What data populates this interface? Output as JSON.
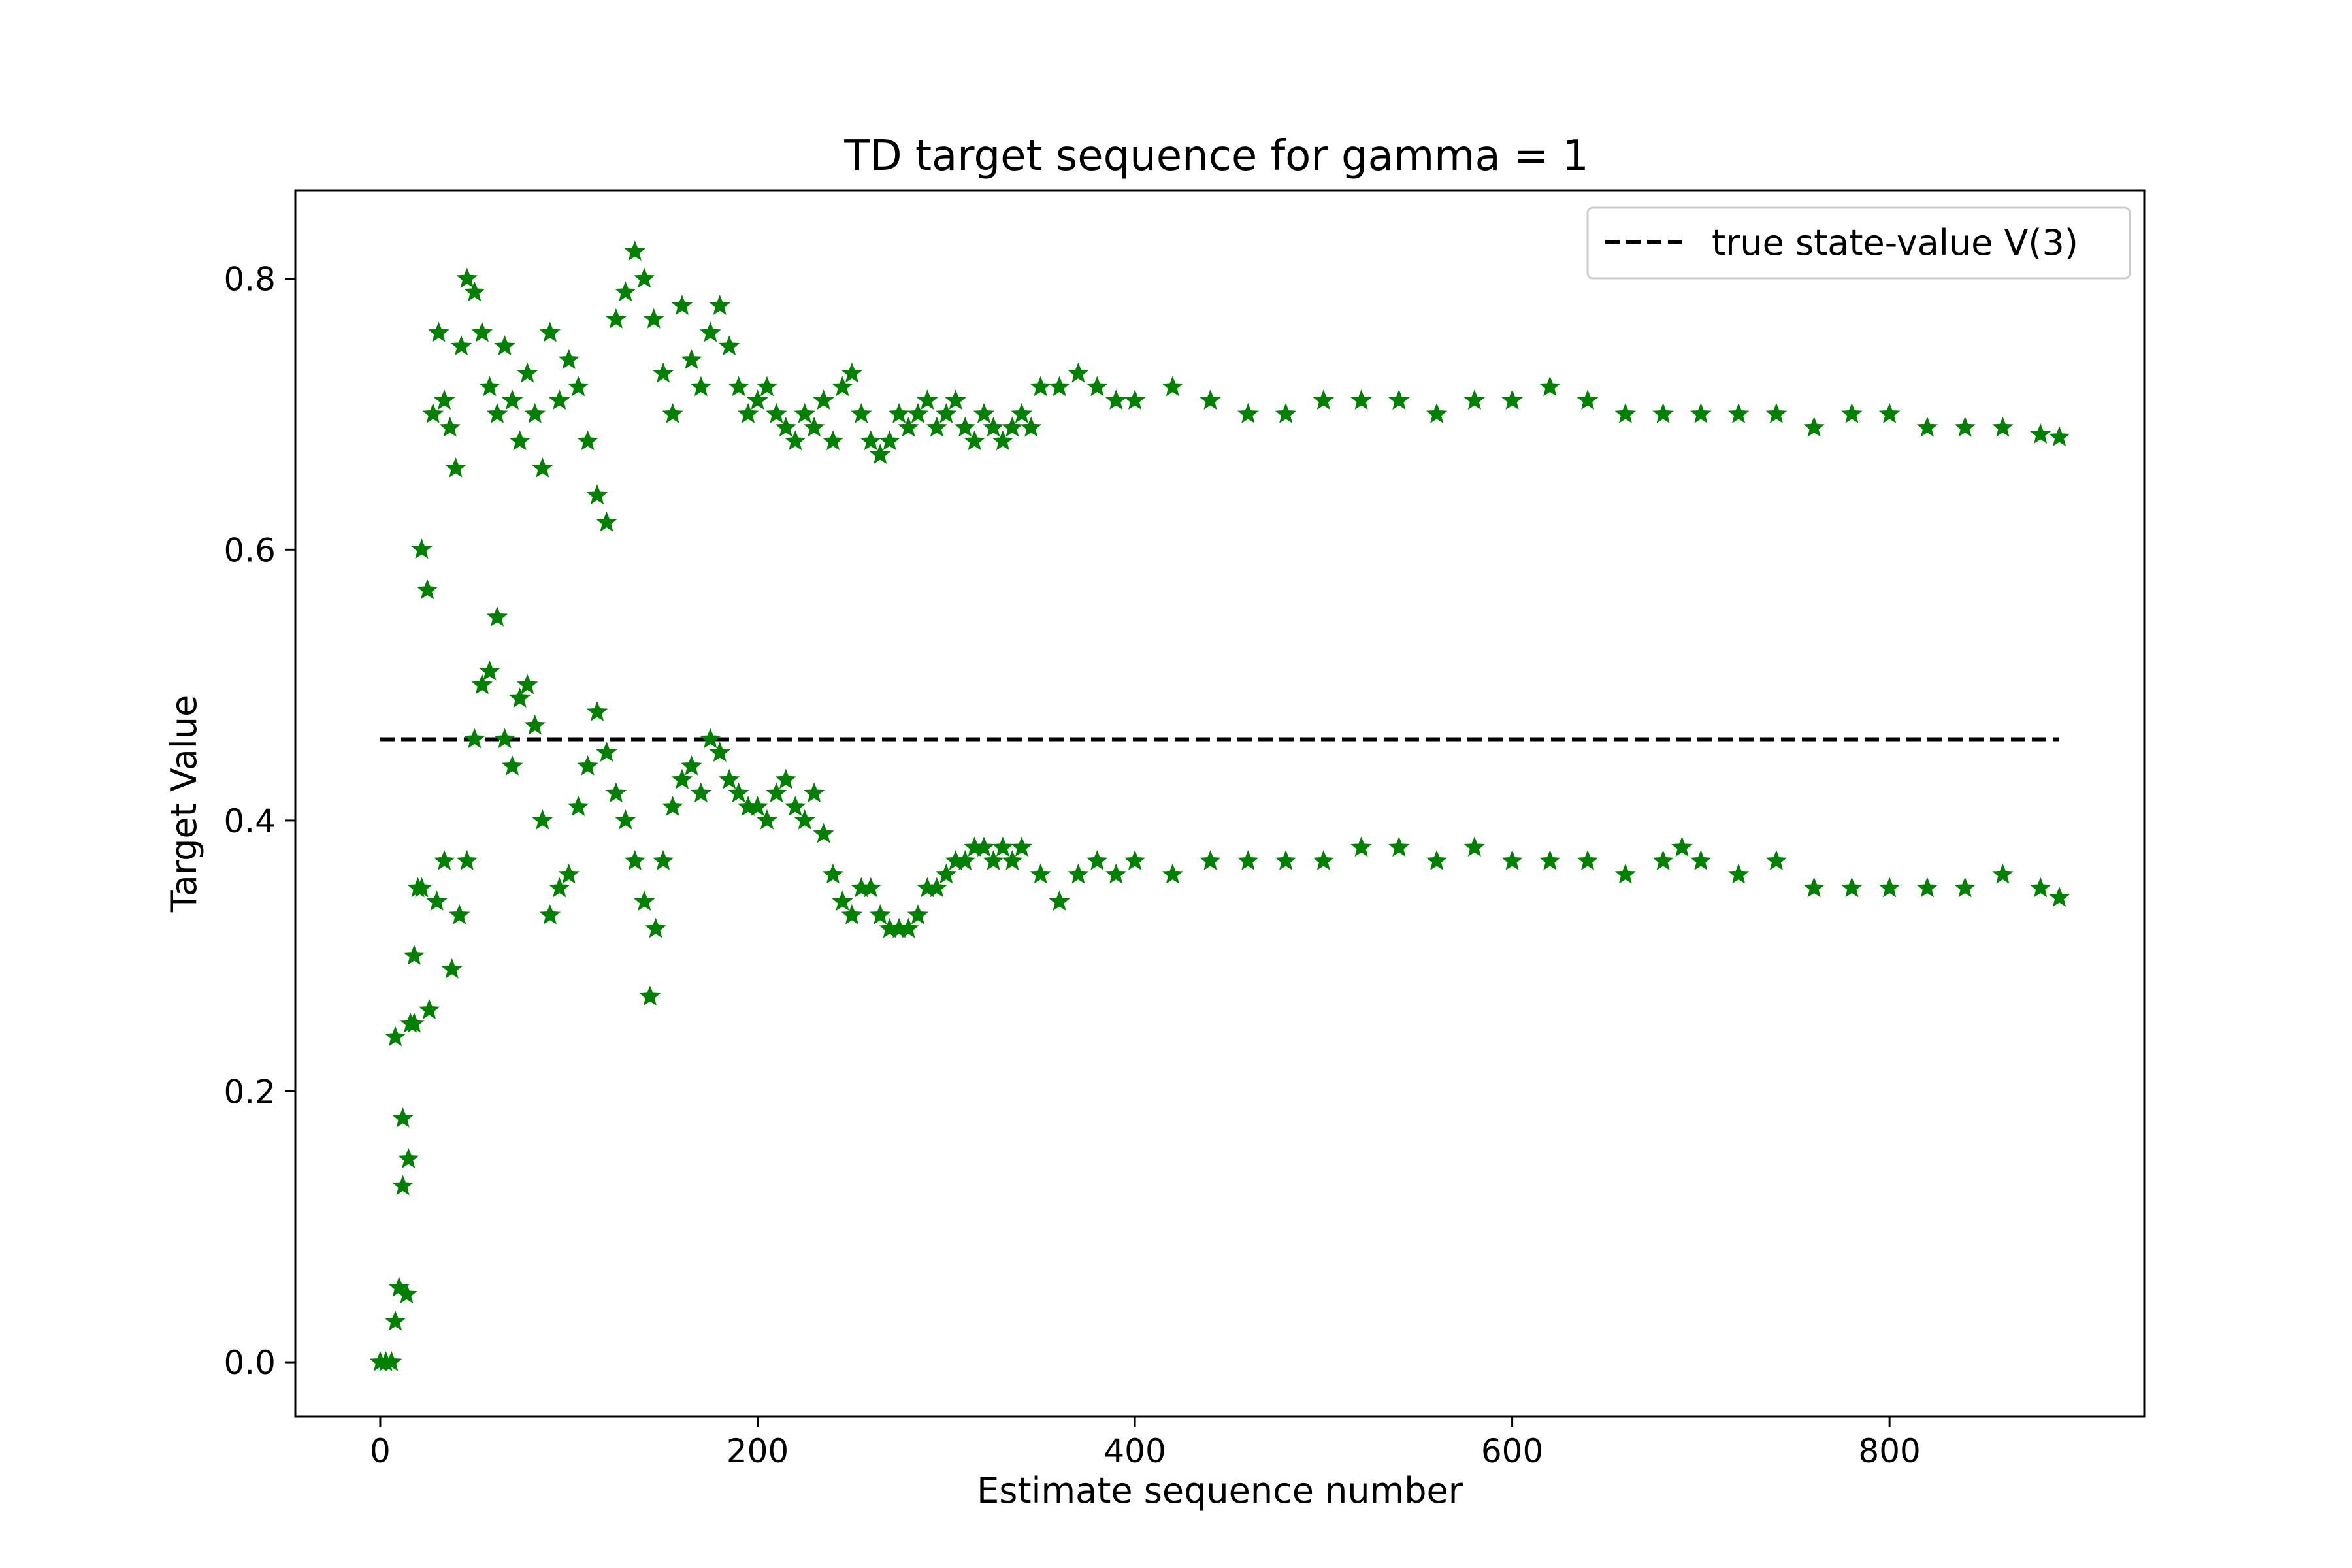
{
  "chart_data": {
    "type": "scatter",
    "title": "TD target sequence for gamma = 1",
    "xlabel": "Estimate sequence number",
    "ylabel": "Target Value",
    "xlim": [
      -45,
      935
    ],
    "ylim": [
      -0.04,
      0.865
    ],
    "xticks": [
      0,
      200,
      400,
      600,
      800
    ],
    "xtick_labels": [
      "0",
      "200",
      "400",
      "600",
      "800"
    ],
    "yticks": [
      0.0,
      0.2,
      0.4,
      0.6,
      0.8
    ],
    "ytick_labels": [
      "0.0",
      "0.2",
      "0.4",
      "0.6",
      "0.8"
    ],
    "grid": false,
    "legend_position": "top-right",
    "colors": {
      "series": "#008000",
      "reference": "#000000"
    },
    "series": [
      {
        "marker": "star",
        "x": [
          0,
          3,
          6,
          8,
          10,
          12,
          14,
          16,
          18,
          20,
          22,
          25,
          28,
          31,
          34,
          37,
          40,
          43,
          46,
          50,
          54,
          58,
          62,
          66,
          70,
          74,
          78,
          82,
          86,
          90,
          95,
          100,
          105,
          110,
          115,
          120,
          125,
          130,
          135,
          140,
          145,
          150,
          155,
          160,
          165,
          170,
          175,
          180,
          185,
          190,
          195,
          200,
          205,
          210,
          215,
          220,
          225,
          230,
          235,
          240,
          245,
          250,
          255,
          260,
          265,
          270,
          275,
          280,
          285,
          290,
          295,
          300,
          305,
          310,
          315,
          320,
          325,
          330,
          335,
          340,
          345,
          350,
          360,
          370,
          380,
          390,
          400,
          420,
          440,
          460,
          480,
          500,
          520,
          540,
          560,
          580,
          600,
          620,
          640,
          660,
          680,
          700,
          720,
          740,
          760,
          780,
          800,
          820,
          840,
          860,
          880,
          890
        ],
        "y": [
          0.0,
          0.0,
          0.0,
          0.03,
          0.055,
          0.13,
          0.05,
          0.25,
          0.3,
          0.35,
          0.6,
          0.57,
          0.7,
          0.76,
          0.71,
          0.69,
          0.66,
          0.75,
          0.8,
          0.79,
          0.76,
          0.72,
          0.7,
          0.75,
          0.71,
          0.68,
          0.73,
          0.7,
          0.66,
          0.76,
          0.71,
          0.74,
          0.72,
          0.68,
          0.64,
          0.62,
          0.77,
          0.79,
          0.82,
          0.8,
          0.77,
          0.73,
          0.7,
          0.78,
          0.74,
          0.72,
          0.76,
          0.78,
          0.75,
          0.72,
          0.7,
          0.71,
          0.72,
          0.7,
          0.69,
          0.68,
          0.7,
          0.69,
          0.71,
          0.68,
          0.72,
          0.73,
          0.7,
          0.68,
          0.67,
          0.68,
          0.7,
          0.69,
          0.7,
          0.71,
          0.69,
          0.7,
          0.71,
          0.69,
          0.68,
          0.7,
          0.69,
          0.68,
          0.69,
          0.7,
          0.69,
          0.72,
          0.72,
          0.73,
          0.72,
          0.71,
          0.71,
          0.72,
          0.71,
          0.7,
          0.7,
          0.71,
          0.71,
          0.71,
          0.7,
          0.71,
          0.71,
          0.72,
          0.71,
          0.7,
          0.7,
          0.7,
          0.7,
          0.7,
          0.69,
          0.7,
          0.7,
          0.69,
          0.69,
          0.69,
          0.685,
          0.683
        ]
      },
      {
        "marker": "star",
        "x": [
          8,
          12,
          15,
          18,
          22,
          26,
          30,
          34,
          38,
          42,
          46,
          50,
          54,
          58,
          62,
          66,
          70,
          74,
          78,
          82,
          86,
          90,
          95,
          100,
          105,
          110,
          115,
          120,
          125,
          130,
          135,
          140,
          143,
          146,
          150,
          155,
          160,
          165,
          170,
          175,
          180,
          185,
          190,
          195,
          200,
          205,
          210,
          215,
          220,
          225,
          230,
          235,
          240,
          245,
          250,
          255,
          260,
          265,
          270,
          275,
          280,
          285,
          290,
          295,
          300,
          305,
          310,
          315,
          320,
          325,
          330,
          335,
          340,
          350,
          360,
          370,
          380,
          390,
          400,
          420,
          440,
          460,
          480,
          500,
          520,
          540,
          560,
          580,
          600,
          620,
          640,
          660,
          680,
          690,
          700,
          720,
          740,
          760,
          780,
          800,
          820,
          840,
          860,
          880,
          890
        ],
        "y": [
          0.24,
          0.18,
          0.15,
          0.25,
          0.35,
          0.26,
          0.34,
          0.37,
          0.29,
          0.33,
          0.37,
          0.46,
          0.5,
          0.51,
          0.55,
          0.46,
          0.44,
          0.49,
          0.5,
          0.47,
          0.4,
          0.33,
          0.35,
          0.36,
          0.41,
          0.44,
          0.48,
          0.45,
          0.42,
          0.4,
          0.37,
          0.34,
          0.27,
          0.32,
          0.37,
          0.41,
          0.43,
          0.44,
          0.42,
          0.46,
          0.45,
          0.43,
          0.42,
          0.41,
          0.41,
          0.4,
          0.42,
          0.43,
          0.41,
          0.4,
          0.42,
          0.39,
          0.36,
          0.34,
          0.33,
          0.35,
          0.35,
          0.33,
          0.32,
          0.32,
          0.32,
          0.33,
          0.35,
          0.35,
          0.36,
          0.37,
          0.37,
          0.38,
          0.38,
          0.37,
          0.38,
          0.37,
          0.38,
          0.36,
          0.34,
          0.36,
          0.37,
          0.36,
          0.37,
          0.36,
          0.37,
          0.37,
          0.37,
          0.37,
          0.38,
          0.38,
          0.37,
          0.38,
          0.37,
          0.37,
          0.37,
          0.36,
          0.37,
          0.38,
          0.37,
          0.36,
          0.37,
          0.35,
          0.35,
          0.35,
          0.35,
          0.35,
          0.36,
          0.35,
          0.343
        ]
      }
    ],
    "reference_line": {
      "label": "true state-value V(3)",
      "style": "dashed",
      "y": 0.46,
      "x_range": [
        0,
        890
      ]
    }
  }
}
